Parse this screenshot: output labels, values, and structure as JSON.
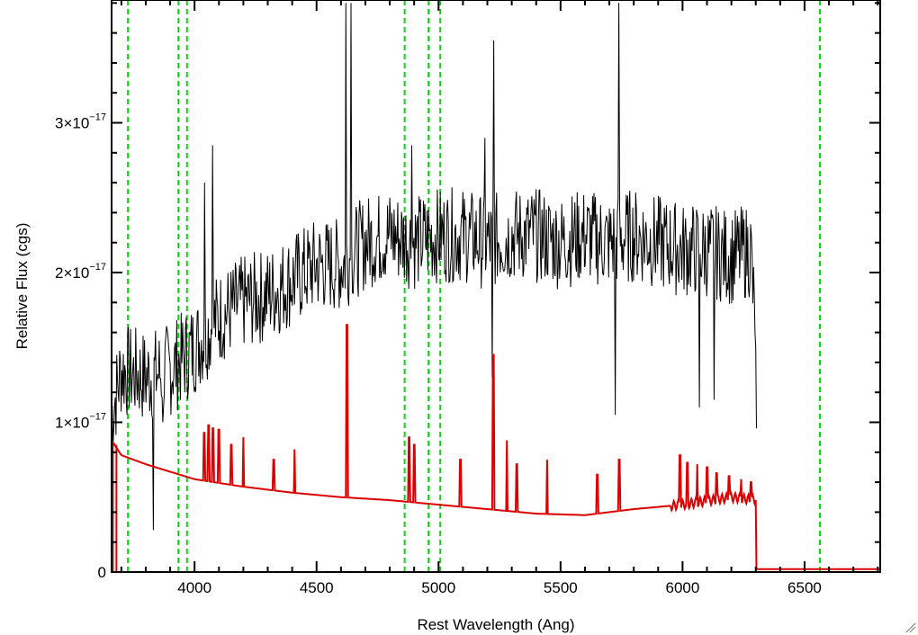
{
  "chart_data": {
    "type": "line",
    "title": "",
    "xlabel": "Rest Wavelength (Ang)",
    "ylabel": "Relative Flux (cgs)",
    "xlim": [
      3660,
      6810
    ],
    "ylim": [
      0,
      3.82e-17
    ],
    "x_ticks": [
      4000,
      4500,
      5000,
      5500,
      6000,
      6500
    ],
    "y_ticks": [
      {
        "value": 0,
        "mantissa": "0",
        "exponent": ""
      },
      {
        "value": 1e-17,
        "mantissa": "1×10",
        "exponent": "−17"
      },
      {
        "value": 2e-17,
        "mantissa": "2×10",
        "exponent": "−17"
      },
      {
        "value": 3e-17,
        "mantissa": "3×10",
        "exponent": "−17"
      }
    ],
    "vertical_lines": {
      "color": "#00dd00",
      "style": "dashed",
      "x": [
        3727,
        3934,
        3969,
        4861,
        4959,
        5007,
        6563
      ]
    },
    "series": [
      {
        "color": "#000000",
        "role": "observed spectrum",
        "noise_seed": 7,
        "noise_amplitude": 3.2e-18,
        "continuum": [
          [
            3660,
            1.05e-17
          ],
          [
            3700,
            1.35e-17
          ],
          [
            3800,
            1.3e-17
          ],
          [
            3900,
            1.35e-17
          ],
          [
            4000,
            1.5e-17
          ],
          [
            4100,
            1.7e-17
          ],
          [
            4200,
            1.8e-17
          ],
          [
            4300,
            1.85e-17
          ],
          [
            4400,
            1.95e-17
          ],
          [
            4500,
            2.05e-17
          ],
          [
            4600,
            2.05e-17
          ],
          [
            4700,
            2.2e-17
          ],
          [
            4800,
            2.25e-17
          ],
          [
            4900,
            2.2e-17
          ],
          [
            5000,
            2.25e-17
          ],
          [
            5100,
            2.25e-17
          ],
          [
            5200,
            2.2e-17
          ],
          [
            5300,
            2.25e-17
          ],
          [
            5400,
            2.25e-17
          ],
          [
            5500,
            2.2e-17
          ],
          [
            5600,
            2.25e-17
          ],
          [
            5700,
            2.2e-17
          ],
          [
            5800,
            2.25e-17
          ],
          [
            5900,
            2.2e-17
          ],
          [
            6000,
            2.15e-17
          ],
          [
            6100,
            2.15e-17
          ],
          [
            6200,
            2.1e-17
          ],
          [
            6280,
            2.15e-17
          ],
          [
            6300,
            1.5e-17
          ],
          [
            6305,
            6e-18
          ]
        ],
        "spikes": [
          [
            4620,
            3.8e-17
          ],
          [
            4640,
            3.8e-17
          ],
          [
            5225,
            3.55e-17
          ],
          [
            5740,
            3.8e-17
          ],
          [
            4040,
            2.6e-17
          ],
          [
            4075,
            2.85e-17
          ],
          [
            4890,
            2.85e-17
          ],
          [
            5190,
            2.9e-17
          ],
          [
            3830,
            2.8e-18
          ],
          [
            3870,
            1e-17
          ],
          [
            5220,
            1.3e-17
          ],
          [
            5725,
            1.05e-17
          ],
          [
            6070,
            1.1e-17
          ],
          [
            6130,
            1.15e-17
          ]
        ]
      },
      {
        "color": "#dd0000",
        "role": "model spectrum",
        "continuum": [
          [
            3660,
            8.8e-18
          ],
          [
            3700,
            7.8e-18
          ],
          [
            3800,
            7.2e-18
          ],
          [
            3900,
            6.7e-18
          ],
          [
            4000,
            6.2e-18
          ],
          [
            4200,
            5.7e-18
          ],
          [
            4400,
            5.3e-18
          ],
          [
            4600,
            5e-18
          ],
          [
            4800,
            4.8e-18
          ],
          [
            5000,
            4.5e-18
          ],
          [
            5200,
            4.2e-18
          ],
          [
            5400,
            3.9e-18
          ],
          [
            5600,
            3.8e-18
          ],
          [
            5800,
            4.2e-18
          ],
          [
            6000,
            4.5e-18
          ],
          [
            6200,
            5e-18
          ],
          [
            6300,
            4.8e-18
          ],
          [
            6302,
            2e-19
          ],
          [
            6810,
            2e-19
          ]
        ],
        "emission_lines": [
          [
            4040,
            9.3e-18
          ],
          [
            4058,
            9.8e-18
          ],
          [
            4075,
            9.6e-18
          ],
          [
            4100,
            9.5e-18
          ],
          [
            4150,
            8.5e-18
          ],
          [
            4200,
            9e-18
          ],
          [
            4325,
            7.5e-18
          ],
          [
            4410,
            8.2e-18
          ],
          [
            4625,
            1.65e-17
          ],
          [
            4880,
            9e-18
          ],
          [
            4900,
            8.5e-18
          ],
          [
            5090,
            7.5e-18
          ],
          [
            5225,
            1.45e-17
          ],
          [
            5280,
            8.8e-18
          ],
          [
            5320,
            7.2e-18
          ],
          [
            5445,
            7.5e-18
          ],
          [
            5650,
            6.5e-18
          ],
          [
            5740,
            7.5e-18
          ],
          [
            5990,
            7.8e-18
          ],
          [
            6020,
            7.3e-18
          ],
          [
            6060,
            7.2e-18
          ],
          [
            6100,
            7e-18
          ],
          [
            6140,
            6.6e-18
          ],
          [
            6190,
            6.4e-18
          ],
          [
            6240,
            6.2e-18
          ],
          [
            6280,
            6e-18
          ]
        ],
        "drop_left": [
          [
            3665,
            8.5e-18
          ],
          [
            3680,
            8.5e-18
          ]
        ]
      }
    ]
  }
}
